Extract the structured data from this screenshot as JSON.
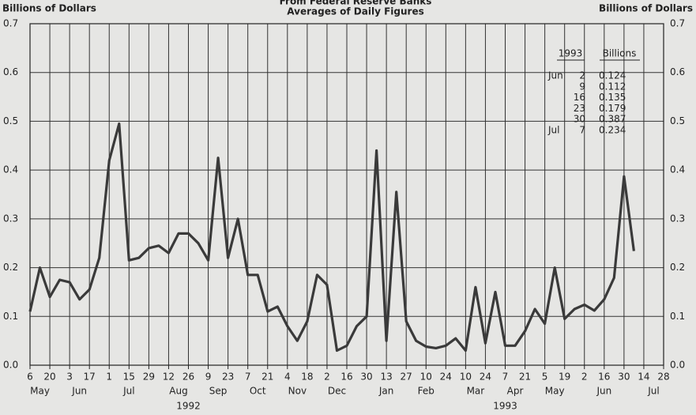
{
  "chart_data": {
    "type": "line",
    "title": "From Federal Reserve Banks",
    "subtitle": "Averages of Daily Figures",
    "y_label": "Billions of Dollars",
    "y2_label": "Billions of Dollars",
    "x": [
      "1992-05-06",
      "1992-05-13",
      "1992-05-20",
      "1992-05-27",
      "1992-06-03",
      "1992-06-10",
      "1992-06-17",
      "1992-06-24",
      "1992-07-01",
      "1992-07-08",
      "1992-07-15",
      "1992-07-22",
      "1992-07-29",
      "1992-08-05",
      "1992-08-12",
      "1992-08-19",
      "1992-08-26",
      "1992-09-02",
      "1992-09-09",
      "1992-09-16",
      "1992-09-23",
      "1992-09-30",
      "1992-10-07",
      "1992-10-14",
      "1992-10-21",
      "1992-10-28",
      "1992-11-04",
      "1992-11-11",
      "1992-11-18",
      "1992-11-25",
      "1992-12-02",
      "1992-12-09",
      "1992-12-16",
      "1992-12-23",
      "1992-12-30",
      "1993-01-06",
      "1993-01-13",
      "1993-01-20",
      "1993-01-27",
      "1993-02-03",
      "1993-02-10",
      "1993-02-17",
      "1993-02-24",
      "1993-03-03",
      "1993-03-10",
      "1993-03-17",
      "1993-03-24",
      "1993-03-31",
      "1993-04-07",
      "1993-04-14",
      "1993-04-21",
      "1993-04-28",
      "1993-05-05",
      "1993-05-12",
      "1993-05-19",
      "1993-05-26",
      "1993-06-02",
      "1993-06-09",
      "1993-06-16",
      "1993-06-23",
      "1993-06-30",
      "1993-07-07"
    ],
    "series": [
      {
        "color": "#3a3a3a",
        "values": [
          0.11,
          0.2,
          0.14,
          0.175,
          0.17,
          0.135,
          0.155,
          0.22,
          0.42,
          0.495,
          0.215,
          0.22,
          0.24,
          0.245,
          0.23,
          0.27,
          0.27,
          0.25,
          0.215,
          0.425,
          0.22,
          0.3,
          0.185,
          0.185,
          0.11,
          0.12,
          0.08,
          0.05,
          0.09,
          0.185,
          0.165,
          0.03,
          0.04,
          0.08,
          0.1,
          0.44,
          0.05,
          0.355,
          0.09,
          0.05,
          0.038,
          0.035,
          0.04,
          0.055,
          0.03,
          0.16,
          0.045,
          0.15,
          0.04,
          0.04,
          0.07,
          0.115,
          0.085,
          0.2,
          0.095,
          0.115,
          0.124,
          0.112,
          0.135,
          0.179,
          0.387,
          0.234
        ]
      }
    ],
    "xlim": [
      "1992-05-06",
      "1993-07-28"
    ],
    "xticks": [
      {
        "value": "1992-05-06",
        "label": "6"
      },
      {
        "value": "1992-05-20",
        "label": "20"
      },
      {
        "value": "1992-06-03",
        "label": "3"
      },
      {
        "value": "1992-06-17",
        "label": "17"
      },
      {
        "value": "1992-07-01",
        "label": "1"
      },
      {
        "value": "1992-07-15",
        "label": "15"
      },
      {
        "value": "1992-07-29",
        "label": "29"
      },
      {
        "value": "1992-08-12",
        "label": "12"
      },
      {
        "value": "1992-08-26",
        "label": "26"
      },
      {
        "value": "1992-09-09",
        "label": "9"
      },
      {
        "value": "1992-09-23",
        "label": "23"
      },
      {
        "value": "1992-10-07",
        "label": "7"
      },
      {
        "value": "1992-10-21",
        "label": "21"
      },
      {
        "value": "1992-11-04",
        "label": "4"
      },
      {
        "value": "1992-11-18",
        "label": "18"
      },
      {
        "value": "1992-12-02",
        "label": "2"
      },
      {
        "value": "1992-12-16",
        "label": "16"
      },
      {
        "value": "1992-12-30",
        "label": "30"
      },
      {
        "value": "1993-01-13",
        "label": "13"
      },
      {
        "value": "1993-01-27",
        "label": "27"
      },
      {
        "value": "1993-02-10",
        "label": "10"
      },
      {
        "value": "1993-02-24",
        "label": "24"
      },
      {
        "value": "1993-03-10",
        "label": "10"
      },
      {
        "value": "1993-03-24",
        "label": "24"
      },
      {
        "value": "1993-04-07",
        "label": "7"
      },
      {
        "value": "1993-04-21",
        "label": "21"
      },
      {
        "value": "1993-05-05",
        "label": "5"
      },
      {
        "value": "1993-05-19",
        "label": "19"
      },
      {
        "value": "1993-06-02",
        "label": "2"
      },
      {
        "value": "1993-06-16",
        "label": "16"
      },
      {
        "value": "1993-06-30",
        "label": "30"
      },
      {
        "value": "1993-07-14",
        "label": "14"
      },
      {
        "value": "1993-07-28",
        "label": "28"
      }
    ],
    "x_month_labels": [
      {
        "value": "1992-05-13",
        "label": "May"
      },
      {
        "value": "1992-06-10",
        "label": "Jun"
      },
      {
        "value": "1992-07-15",
        "label": "Jul"
      },
      {
        "value": "1992-08-19",
        "label": "Aug"
      },
      {
        "value": "1992-09-16",
        "label": "Sep"
      },
      {
        "value": "1992-10-14",
        "label": "Oct"
      },
      {
        "value": "1992-11-11",
        "label": "Nov"
      },
      {
        "value": "1992-12-09",
        "label": "Dec"
      },
      {
        "value": "1993-01-13",
        "label": "Jan"
      },
      {
        "value": "1993-02-10",
        "label": "Feb"
      },
      {
        "value": "1993-03-17",
        "label": "Mar"
      },
      {
        "value": "1993-04-14",
        "label": "Apr"
      },
      {
        "value": "1993-05-12",
        "label": "May"
      },
      {
        "value": "1993-06-16",
        "label": "Jun"
      },
      {
        "value": "1993-07-21",
        "label": "Jul"
      }
    ],
    "x_year_labels": [
      {
        "value": "1992-08-26",
        "label": "1992"
      },
      {
        "value": "1993-04-07",
        "label": "1993"
      }
    ],
    "ylim": [
      0,
      0.7
    ],
    "yticks": [
      {
        "value": 0,
        "label": "0.0"
      },
      0.1,
      0.2,
      0.3,
      0.4,
      0.5,
      0.6,
      0.7
    ],
    "grid": true,
    "table": {
      "header": [
        "1993",
        "Billions"
      ],
      "rows": [
        {
          "month": "Jun",
          "day": 2,
          "value": 0.124
        },
        {
          "day": 9,
          "value": 0.112
        },
        {
          "day": 16,
          "value": 0.135
        },
        {
          "day": 23,
          "value": 0.179
        },
        {
          "day": 30,
          "value": 0.387
        },
        {
          "month": "Jul",
          "day": 7,
          "value": 0.234
        }
      ]
    }
  }
}
